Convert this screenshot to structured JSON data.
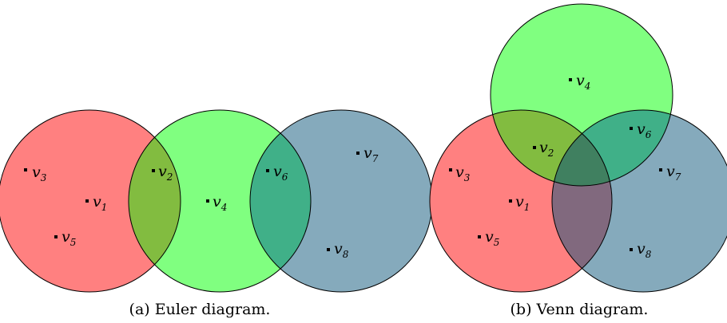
{
  "colors": {
    "red": "#ff8080",
    "green": "#80ff80",
    "blue": "#85aabc",
    "euler_red_green": "#82bc40",
    "euler_green_blue": "#40b088",
    "venn_red_green": "#82bc40",
    "venn_green_blue": "#40b088",
    "venn_red_blue": "#81697e",
    "venn_all": "#408060"
  },
  "euler": {
    "caption": "(a) Euler diagram.",
    "vertices": [
      {
        "name": "v",
        "sub": "3"
      },
      {
        "name": "v",
        "sub": "1"
      },
      {
        "name": "v",
        "sub": "5"
      },
      {
        "name": "v",
        "sub": "2"
      },
      {
        "name": "v",
        "sub": "4"
      },
      {
        "name": "v",
        "sub": "6"
      },
      {
        "name": "v",
        "sub": "7"
      },
      {
        "name": "v",
        "sub": "8"
      }
    ]
  },
  "venn": {
    "caption": "(b) Venn diagram.",
    "vertices": [
      {
        "name": "v",
        "sub": "4"
      },
      {
        "name": "v",
        "sub": "2"
      },
      {
        "name": "v",
        "sub": "6"
      },
      {
        "name": "v",
        "sub": "3"
      },
      {
        "name": "v",
        "sub": "7"
      },
      {
        "name": "v",
        "sub": "1"
      },
      {
        "name": "v",
        "sub": "5"
      },
      {
        "name": "v",
        "sub": "8"
      }
    ]
  }
}
